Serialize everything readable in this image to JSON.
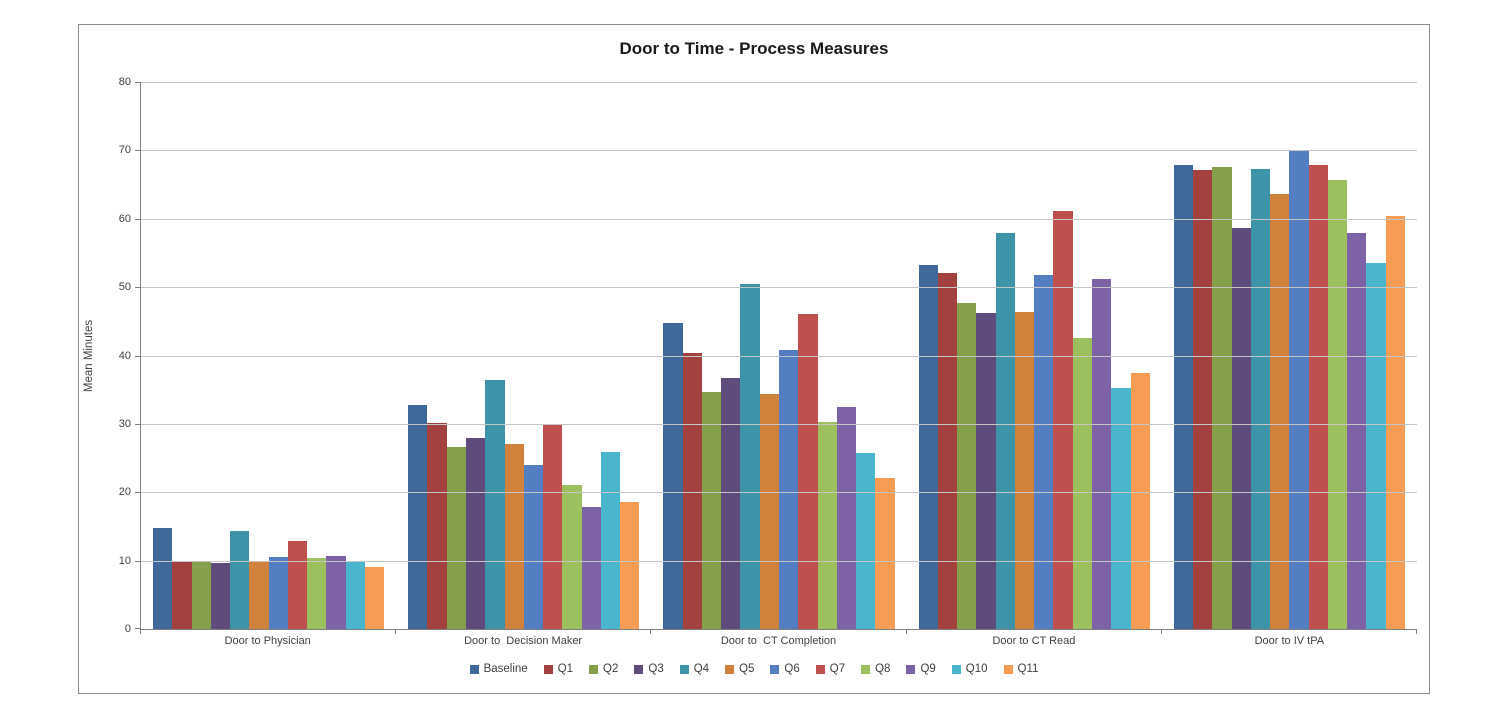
{
  "chart_data": {
    "type": "bar",
    "title": "Door to Time - Process Measures",
    "ylabel": "Mean Minutes",
    "xlabel": "",
    "ylim": [
      0,
      80
    ],
    "ytick_step": 10,
    "grid": true,
    "legend_position": "bottom",
    "categories": [
      "Door to Physician",
      "Door to  Decision Maker",
      "Door to  CT Completion",
      "Door to CT Read",
      "Door to IV tPA"
    ],
    "series": [
      {
        "name": "Baseline",
        "color": "#40699B",
        "values": [
          14.8,
          32.7,
          44.7,
          53.2,
          67.9
        ]
      },
      {
        "name": "Q1",
        "color": "#A2413E",
        "values": [
          9.9,
          30.2,
          40.3,
          52.1,
          67.1
        ]
      },
      {
        "name": "Q2",
        "color": "#84A04A",
        "values": [
          10.0,
          26.6,
          34.7,
          47.7,
          67.6
        ]
      },
      {
        "name": "Q3",
        "color": "#604B7D",
        "values": [
          9.6,
          28.0,
          36.7,
          46.2,
          58.6
        ]
      },
      {
        "name": "Q4",
        "color": "#3D93A8",
        "values": [
          14.3,
          36.4,
          50.5,
          57.9,
          67.3
        ]
      },
      {
        "name": "Q5",
        "color": "#D0813B",
        "values": [
          10.0,
          27.0,
          34.3,
          46.4,
          63.6
        ]
      },
      {
        "name": "Q6",
        "color": "#537FC2",
        "values": [
          10.5,
          24.0,
          40.8,
          51.8,
          70.0
        ]
      },
      {
        "name": "Q7",
        "color": "#C0504D",
        "values": [
          12.8,
          30.0,
          46.1,
          61.1,
          67.9
        ]
      },
      {
        "name": "Q8",
        "color": "#9CC05E",
        "values": [
          10.4,
          21.0,
          30.3,
          42.6,
          65.7
        ]
      },
      {
        "name": "Q9",
        "color": "#7D63A5",
        "values": [
          10.7,
          17.8,
          32.5,
          51.2,
          57.9
        ]
      },
      {
        "name": "Q10",
        "color": "#4AB6CE",
        "values": [
          10.0,
          25.9,
          25.7,
          35.2,
          53.5
        ]
      },
      {
        "name": "Q11",
        "color": "#F79C52",
        "values": [
          9.1,
          18.6,
          22.1,
          37.4,
          60.4
        ]
      }
    ],
    "colors": {
      "frame_border": "#8C8C8C",
      "gridline": "#C5C5C5",
      "axis": "#808080",
      "text": "#3F3F3F",
      "title_text": "#1A1A1A",
      "background": "#FFFFFF"
    }
  }
}
